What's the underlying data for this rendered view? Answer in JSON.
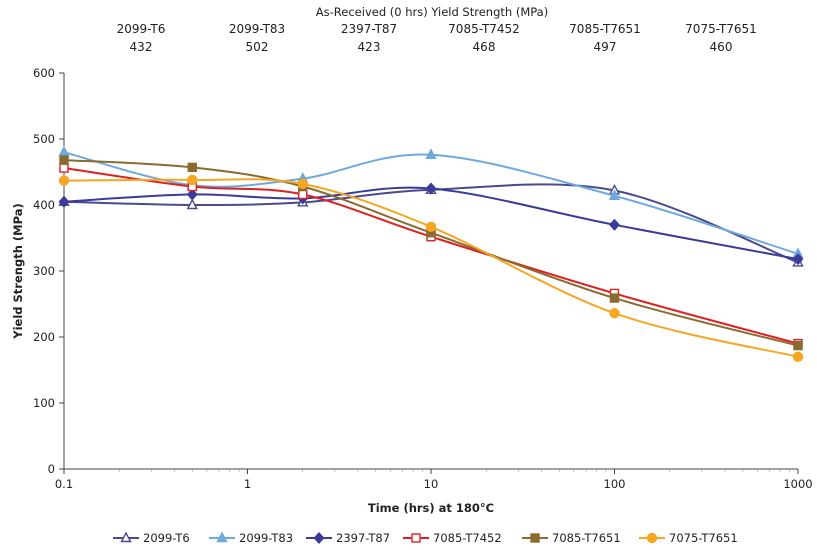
{
  "chart_data": {
    "type": "line",
    "header": {
      "title": "As-Received (0 hrs) Yield Strength (MPa)",
      "alloys": [
        "2099-T6",
        "2099-T83",
        "2397-T87",
        "7085-T7452",
        "7085-T7651",
        "7075-T7651"
      ],
      "values": [
        "432",
        "502",
        "423",
        "468",
        "497",
        "460"
      ]
    },
    "xlabel": "Time (hrs) at 180°C",
    "ylabel": "Yield Strength (MPa)",
    "xscale": "log",
    "xlim": [
      0.1,
      1000
    ],
    "ylim": [
      0,
      600
    ],
    "x_ticks": [
      "0.1",
      "1",
      "10",
      "100",
      "1000"
    ],
    "y_ticks": [
      "0",
      "100",
      "200",
      "300",
      "400",
      "500",
      "600"
    ],
    "grid": false,
    "legend_position": "bottom",
    "x": [
      0.1,
      0.5,
      2,
      10,
      100,
      1000
    ],
    "series": [
      {
        "name": "2099-T6",
        "color": "#4a4a8c",
        "marker": "triangle-open",
        "values": [
          405,
          400,
          404,
          423,
          422,
          313
        ]
      },
      {
        "name": "2099-T83",
        "color": "#6fa8dc",
        "marker": "triangle",
        "values": [
          480,
          430,
          440,
          476,
          414,
          326
        ]
      },
      {
        "name": "2397-T87",
        "color": "#3b3b9a",
        "marker": "diamond",
        "values": [
          405,
          416,
          410,
          425,
          370,
          318
        ]
      },
      {
        "name": "7085-T7452",
        "color": "#e02020",
        "marker": "square-open",
        "values": [
          456,
          428,
          416,
          352,
          266,
          190
        ]
      },
      {
        "name": "7085-T7651",
        "color": "#8b6a2f",
        "marker": "square",
        "values": [
          468,
          457,
          428,
          358,
          259,
          187
        ]
      },
      {
        "name": "7075-T7651",
        "color": "#f5a623",
        "marker": "circle",
        "values": [
          437,
          438,
          432,
          367,
          236,
          170
        ]
      }
    ]
  }
}
